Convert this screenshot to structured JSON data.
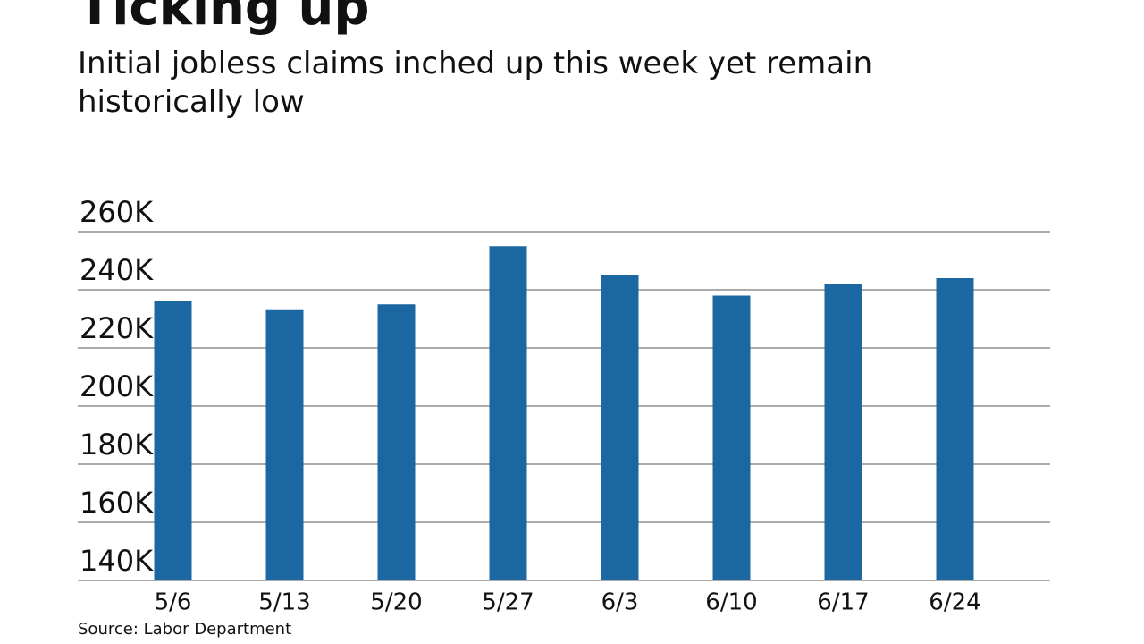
{
  "chart_data": {
    "type": "bar",
    "title": "Ticking up",
    "subtitle": "Initial jobless claims inched up this week yet remain historically low",
    "source": "Source: Labor Department",
    "categories": [
      "5/6",
      "5/13",
      "5/20",
      "5/27",
      "6/3",
      "6/10",
      "6/17",
      "6/24"
    ],
    "values": [
      236000,
      233000,
      235000,
      255000,
      245000,
      238000,
      242000,
      244000
    ],
    "color": "#1b67a2",
    "ylim": [
      140000,
      260000
    ],
    "yticks": [
      {
        "value": 140000,
        "label": "140K"
      },
      {
        "value": 160000,
        "label": "160K"
      },
      {
        "value": 180000,
        "label": "180K"
      },
      {
        "value": 200000,
        "label": "200K"
      },
      {
        "value": 220000,
        "label": "220K"
      },
      {
        "value": 240000,
        "label": "240K"
      },
      {
        "value": 260000,
        "label": "260K"
      }
    ],
    "grid": true
  }
}
